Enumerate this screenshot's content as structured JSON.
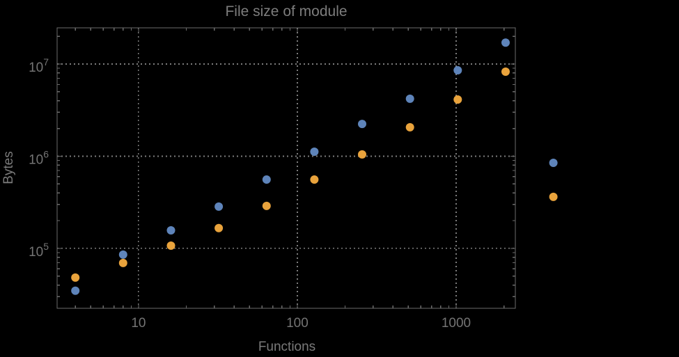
{
  "chart_data": {
    "type": "scatter",
    "title": "File size of module",
    "xlabel": "Functions",
    "ylabel": "Bytes",
    "x_scale": "log",
    "y_scale": "log",
    "xlim": [
      3.07,
      2360
    ],
    "ylim": [
      22400,
      24700000
    ],
    "grid": "dotted gridlines at decade values on both axes",
    "legend": "none",
    "x": [
      4,
      8,
      16,
      32,
      64,
      128,
      256,
      512,
      1024,
      2048,
      4096
    ],
    "series": [
      {
        "name": "series-blue",
        "color": "#5e84ba",
        "values": [
          34700,
          85500,
          157000,
          284000,
          558000,
          1120000,
          2240000,
          4200000,
          8550000,
          17100000,
          847000
        ]
      },
      {
        "name": "series-orange",
        "color": "#e9a33c",
        "values": [
          48200,
          69400,
          107000,
          166000,
          289000,
          558000,
          1045000,
          2060000,
          4120000,
          8260000,
          362000
        ]
      }
    ],
    "x_major_ticks": [
      {
        "value": 10,
        "label": "10"
      },
      {
        "value": 100,
        "label": "100"
      },
      {
        "value": 1000,
        "label": "1000"
      }
    ],
    "y_major_ticks": [
      {
        "value": 100000,
        "base": "10",
        "exponent": "5"
      },
      {
        "value": 1000000,
        "base": "10",
        "exponent": "6"
      },
      {
        "value": 10000000,
        "base": "10",
        "exponent": "7"
      }
    ],
    "note": "points at x=4096 are drawn outside the right frame edge"
  },
  "style": {
    "background": "#000000",
    "frame_color": "#6b6b6b",
    "grid_color": "#7d7d7d",
    "text_color": "#7a7a7a",
    "tick_label_color": "#747474",
    "marker_radius": 6
  }
}
